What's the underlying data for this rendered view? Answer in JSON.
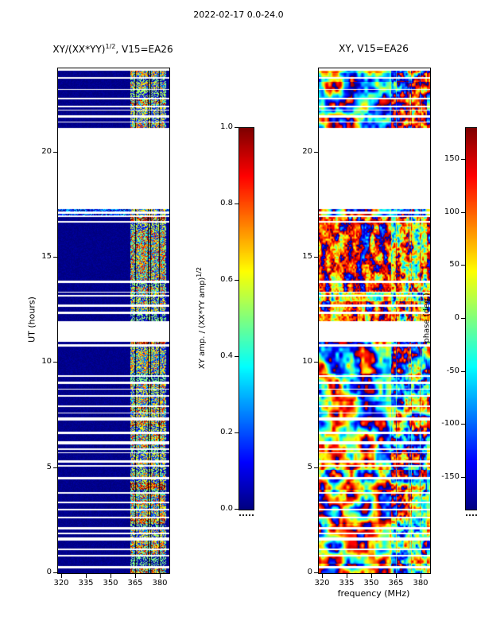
{
  "figure": {
    "title": "2022-02-17 0.0-24.0"
  },
  "panels": {
    "left": {
      "title_base": "XY/(XX*YY)",
      "title_sup": "1/2",
      "title_rest": ", V15=EA26",
      "ylabel": "UT (hours)"
    },
    "right": {
      "title": "XY, V15=EA26",
      "xlabel": "frequency (MHz)"
    }
  },
  "colorbars": {
    "amp": {
      "label_base": "XY amp. / (XX*YY amp)",
      "label_sup": "1/2",
      "range": [
        0.0,
        1.0
      ],
      "ticks": [
        {
          "label": "1.0",
          "value": 1.0
        },
        {
          "label": "0.8",
          "value": 0.8
        },
        {
          "label": "0.6",
          "value": 0.6
        },
        {
          "label": "0.4",
          "value": 0.4
        },
        {
          "label": "0.2",
          "value": 0.2
        },
        {
          "label": "0.0",
          "value": 0.0
        }
      ]
    },
    "phase": {
      "label": "phase (deg.)",
      "range": [
        -180,
        180
      ],
      "ticks": [
        {
          "label": "150",
          "value": 150
        },
        {
          "label": "100",
          "value": 100
        },
        {
          "label": "50",
          "value": 50
        },
        {
          "label": "0",
          "value": 0
        },
        {
          "label": "-50",
          "value": -50
        },
        {
          "label": "-100",
          "value": -100
        },
        {
          "label": "-150",
          "value": -150
        }
      ]
    }
  },
  "chart_data": [
    {
      "type": "heatmap",
      "title": "XY/(XX*YY)^(1/2), V15=EA26",
      "xlabel": "frequency (MHz)",
      "ylabel": "UT (hours)",
      "xlim": [
        318,
        386
      ],
      "ylim": [
        0,
        24
      ],
      "xticks": [
        320,
        335,
        350,
        365,
        380
      ],
      "yticks": [
        0,
        5,
        10,
        15,
        20
      ],
      "colormap": "jet",
      "colorbar_label": "XY amp. / (XX*YY amp)^(1/2)",
      "colorbar_range": [
        0.0,
        1.0
      ],
      "colorbar_ticks": [
        0.0,
        0.2,
        0.4,
        0.6,
        0.8,
        1.0
      ],
      "value_background": 0.04,
      "rfi_band_mhz": [
        362,
        384
      ],
      "time_segments": [
        {
          "start": 0.0,
          "end": 9.5,
          "style": "scans"
        },
        {
          "start": 9.5,
          "end": 10.6,
          "style": "solid"
        },
        {
          "start": 10.6,
          "end": 11.0,
          "style": "scans"
        },
        {
          "start": 12.0,
          "end": 13.9,
          "style": "scans"
        },
        {
          "start": 13.9,
          "end": 16.3,
          "style": "solid"
        },
        {
          "start": 16.3,
          "end": 16.95,
          "style": "scans"
        },
        {
          "start": 17.0,
          "end": 17.1,
          "style": "solid",
          "wideband": true
        },
        {
          "start": 17.2,
          "end": 17.32,
          "style": "solid",
          "wideband": true
        },
        {
          "start": 21.15,
          "end": 23.9,
          "style": "scans"
        }
      ],
      "gaps_hours": [
        [
          11.0,
          12.0
        ],
        [
          16.95,
          17.0
        ],
        [
          17.1,
          17.2
        ],
        [
          17.32,
          21.15
        ],
        [
          23.9,
          24.0
        ]
      ],
      "description": "Cross-hand amplitude ratio vs UT and frequency. Below ~362 MHz values sit near 0.02-0.06 (dark navy). Between ~362-384 MHz strong RFI stripes span 0.1-1.0 (cyan/green/yellow/red). Data comes in short scans separated by thin white time gaps; large white gaps where no data was taken."
    },
    {
      "type": "heatmap",
      "title": "XY, V15=EA26",
      "xlabel": "frequency (MHz)",
      "ylabel": "UT (hours)",
      "xlim": [
        318,
        386
      ],
      "ylim": [
        0,
        24
      ],
      "xticks": [
        320,
        335,
        350,
        365,
        380
      ],
      "yticks": [
        0,
        5,
        10,
        15,
        20
      ],
      "colormap": "jet",
      "colorbar_label": "phase (deg.)",
      "colorbar_range": [
        -180,
        180
      ],
      "colorbar_ticks": [
        -150,
        -100,
        -50,
        0,
        50,
        100,
        150
      ],
      "time_segments": [
        {
          "start": 0.0,
          "end": 9.5,
          "style": "scans"
        },
        {
          "start": 9.5,
          "end": 10.6,
          "style": "solid"
        },
        {
          "start": 10.6,
          "end": 11.0,
          "style": "scans"
        },
        {
          "start": 12.0,
          "end": 13.9,
          "style": "scans"
        },
        {
          "start": 13.9,
          "end": 16.3,
          "style": "solid"
        },
        {
          "start": 16.3,
          "end": 16.95,
          "style": "scans"
        },
        {
          "start": 17.0,
          "end": 17.1,
          "style": "solid",
          "wideband": true
        },
        {
          "start": 17.2,
          "end": 17.32,
          "style": "solid",
          "wideband": true
        },
        {
          "start": 21.15,
          "end": 23.9,
          "style": "scans"
        }
      ],
      "gaps_hours": [
        [
          11.0,
          12.0
        ],
        [
          16.95,
          17.0
        ],
        [
          17.1,
          17.2
        ],
        [
          17.32,
          21.15
        ],
        [
          23.9,
          24.0
        ]
      ],
      "description": "Cross-hand phase over the same scan coverage; noise-like patches spanning -180 to +180 deg (full jet palette) with blue/red blobs, and a cyan/green-dominated band between ~12h and ~17h."
    }
  ]
}
